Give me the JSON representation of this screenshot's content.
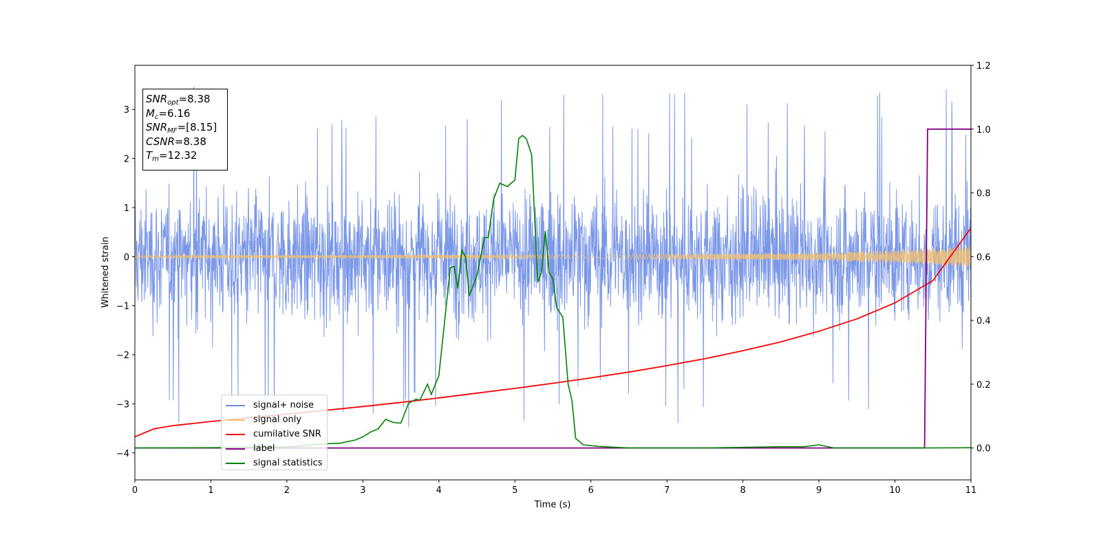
{
  "chart_data": {
    "type": "line",
    "xlabel": "Time (s)",
    "ylabel_left": "Whitened strain",
    "xlim": [
      0,
      11
    ],
    "ylim_left": [
      -4.55,
      3.9
    ],
    "ylim_right": [
      -0.1,
      1.2
    ],
    "x_ticks": [
      "0",
      "1",
      "2",
      "3",
      "4",
      "5",
      "6",
      "7",
      "8",
      "9",
      "10",
      "11"
    ],
    "y_left_ticks": [
      "−4",
      "−3",
      "−2",
      "−1",
      "0",
      "1",
      "2",
      "3"
    ],
    "y_left_values": [
      -4,
      -3,
      -2,
      -1,
      0,
      1,
      2,
      3
    ],
    "y_right_ticks": [
      "0.0",
      "0.2",
      "0.4",
      "0.6",
      "0.8",
      "1.0",
      "1.2"
    ],
    "y_right_values": [
      0.0,
      0.2,
      0.4,
      0.6,
      0.8,
      1.0,
      1.2
    ],
    "grid": false,
    "legend_position": "lower-left",
    "colors": {
      "signal_noise": "#6d8ce6",
      "signal_only": "#f5c16b",
      "cumulative_snr": "#ff0000",
      "label": "#800080",
      "signal_statistics": "#008000"
    },
    "series": [
      {
        "name": "signal+ noise",
        "axis": "left",
        "description_values": "dense whitened noise, approx. uniform band between -2 and 2 with spikes up to ±3.5",
        "envelope_low": -2.0,
        "envelope_high": 2.0
      },
      {
        "name": "signal only",
        "axis": "left",
        "amplitude_envelope": {
          "x": [
            0,
            6,
            8,
            9,
            10,
            10.5,
            11
          ],
          "y": [
            0.03,
            0.04,
            0.06,
            0.08,
            0.13,
            0.16,
            0.22
          ]
        }
      },
      {
        "name": "cumilative SNR",
        "axis": "right",
        "x": [
          0,
          0.25,
          0.5,
          1,
          1.5,
          2,
          2.5,
          3,
          3.5,
          4,
          4.5,
          5,
          5.5,
          6,
          6.5,
          7,
          7.5,
          8,
          8.5,
          9,
          9.5,
          10,
          10.5,
          11
        ],
        "y": [
          0.035,
          0.06,
          0.07,
          0.083,
          0.095,
          0.106,
          0.118,
          0.13,
          0.143,
          0.157,
          0.172,
          0.187,
          0.203,
          0.22,
          0.238,
          0.258,
          0.28,
          0.305,
          0.333,
          0.366,
          0.405,
          0.455,
          0.525,
          0.69
        ]
      },
      {
        "name": "label",
        "axis": "right",
        "x": [
          0,
          10.39,
          10.43,
          11
        ],
        "y": [
          0,
          0,
          1,
          1
        ]
      },
      {
        "name": "signal statistics",
        "axis": "right",
        "x": [
          0,
          1,
          2,
          2.5,
          2.7,
          2.9,
          3.0,
          3.1,
          3.2,
          3.3,
          3.4,
          3.5,
          3.6,
          3.7,
          3.75,
          3.85,
          3.9,
          4.0,
          4.05,
          4.15,
          4.2,
          4.25,
          4.3,
          4.35,
          4.4,
          4.5,
          4.6,
          4.65,
          4.72,
          4.8,
          4.85,
          4.9,
          5.0,
          5.05,
          5.1,
          5.15,
          5.22,
          5.3,
          5.35,
          5.4,
          5.45,
          5.5,
          5.55,
          5.63,
          5.7,
          5.75,
          5.8,
          5.9,
          6.1,
          6.5,
          7.5,
          8.5,
          8.8,
          9.0,
          9.2,
          10.4,
          11
        ],
        "y": [
          0.0,
          0.001,
          0.003,
          0.013,
          0.015,
          0.025,
          0.035,
          0.05,
          0.06,
          0.09,
          0.08,
          0.078,
          0.14,
          0.153,
          0.15,
          0.2,
          0.168,
          0.227,
          0.34,
          0.565,
          0.57,
          0.5,
          0.62,
          0.6,
          0.477,
          0.54,
          0.66,
          0.66,
          0.78,
          0.83,
          0.825,
          0.82,
          0.84,
          0.97,
          0.98,
          0.97,
          0.92,
          0.52,
          0.55,
          0.68,
          0.55,
          0.53,
          0.44,
          0.41,
          0.2,
          0.15,
          0.03,
          0.01,
          0.005,
          0.0,
          0.0,
          0.004,
          0.004,
          0.01,
          0.0,
          0.0,
          0.001
        ]
      }
    ],
    "annotation_box": {
      "snr_opt": "8.38",
      "mc": "6.16",
      "snr_mf": "[8.15]",
      "csnr": "8.38",
      "tm": "12.32"
    }
  },
  "legend": {
    "signal_noise": "signal+ noise",
    "signal_only": "signal only",
    "cumulative_snr": "cumilative SNR",
    "label": "label",
    "signal_statistics": "signal statistics"
  }
}
